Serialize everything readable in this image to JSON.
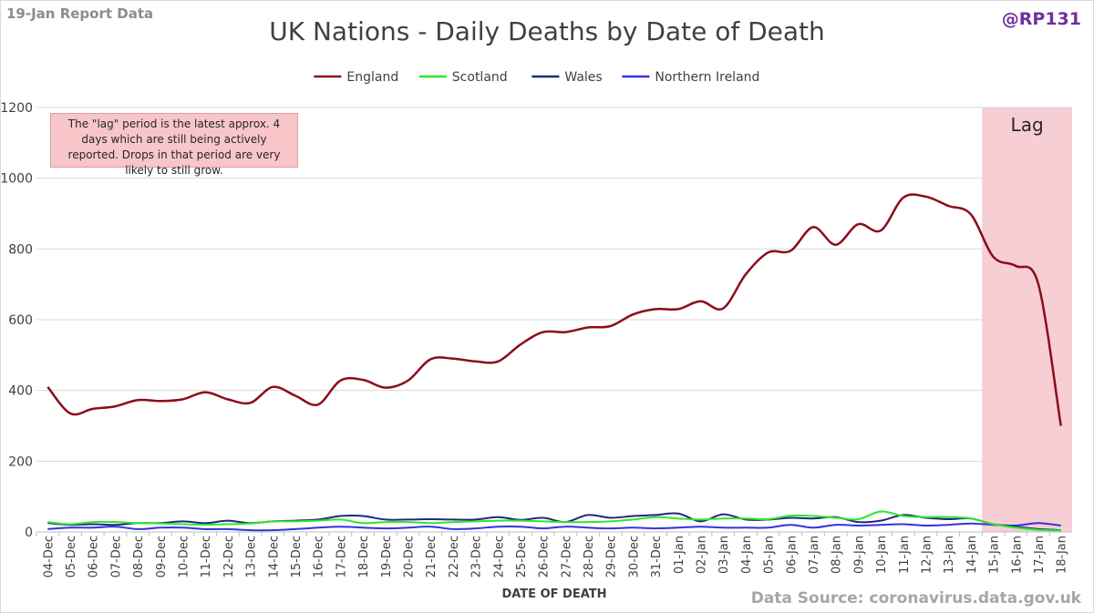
{
  "header": {
    "report_label": "19-Jan Report Data",
    "handle": "@RP131",
    "source": "Data Source: coronavirus.data.gov.uk"
  },
  "annotation": {
    "note": "The \"lag\" period is the latest approx. 4 days which are still being actively reported. Drops in that period are very likely to still grow.",
    "lag_label": "Lag"
  },
  "colors": {
    "england": "#8b0c1c",
    "scotland": "#2ee62e",
    "wales": "#1f2a7a",
    "northern_ireland": "#3333dd",
    "lag_fill": "#f4c6cc",
    "grid": "#d9d9d9"
  },
  "chart_data": {
    "type": "line",
    "title": "UK Nations - Daily Deaths by Date of Death",
    "xlabel": "DATE OF DEATH",
    "ylabel": "",
    "ylim": [
      0,
      1200
    ],
    "yticks": [
      0,
      200,
      400,
      600,
      800,
      1000,
      1200
    ],
    "legend_position": "top-center",
    "lag_range": [
      "15-Jan",
      "18-Jan"
    ],
    "categories": [
      "04-Dec",
      "05-Dec",
      "06-Dec",
      "07-Dec",
      "08-Dec",
      "09-Dec",
      "10-Dec",
      "11-Dec",
      "12-Dec",
      "13-Dec",
      "14-Dec",
      "15-Dec",
      "16-Dec",
      "17-Dec",
      "18-Dec",
      "19-Dec",
      "20-Dec",
      "21-Dec",
      "22-Dec",
      "23-Dec",
      "24-Dec",
      "25-Dec",
      "26-Dec",
      "27-Dec",
      "28-Dec",
      "29-Dec",
      "30-Dec",
      "31-Dec",
      "01-Jan",
      "02-Jan",
      "03-Jan",
      "04-Jan",
      "05-Jan",
      "06-Jan",
      "07-Jan",
      "08-Jan",
      "09-Jan",
      "10-Jan",
      "11-Jan",
      "12-Jan",
      "13-Jan",
      "14-Jan",
      "15-Jan",
      "16-Jan",
      "17-Jan",
      "18-Jan"
    ],
    "series": [
      {
        "name": "England",
        "color_key": "england",
        "values": [
          410,
          335,
          348,
          355,
          373,
          370,
          375,
          395,
          375,
          365,
          410,
          385,
          360,
          428,
          430,
          408,
          428,
          488,
          490,
          482,
          482,
          530,
          565,
          565,
          578,
          582,
          615,
          630,
          630,
          652,
          632,
          728,
          790,
          795,
          862,
          812,
          870,
          852,
          945,
          948,
          922,
          898,
          778,
          752,
          700,
          300
        ]
      },
      {
        "name": "Scotland",
        "color_key": "scotland",
        "values": [
          28,
          22,
          28,
          28,
          25,
          24,
          22,
          20,
          22,
          24,
          30,
          30,
          32,
          35,
          25,
          28,
          28,
          25,
          28,
          30,
          32,
          32,
          30,
          28,
          28,
          30,
          35,
          42,
          38,
          35,
          38,
          38,
          36,
          46,
          45,
          40,
          36,
          58,
          45,
          42,
          42,
          38,
          22,
          12,
          6,
          4
        ]
      },
      {
        "name": "Wales",
        "color_key": "wales",
        "values": [
          25,
          20,
          22,
          20,
          25,
          25,
          30,
          25,
          32,
          25,
          30,
          32,
          35,
          45,
          45,
          35,
          35,
          36,
          35,
          35,
          42,
          34,
          40,
          28,
          48,
          40,
          45,
          48,
          52,
          30,
          50,
          35,
          35,
          40,
          38,
          42,
          28,
          32,
          48,
          40,
          36,
          38,
          22,
          15,
          8,
          5
        ]
      },
      {
        "name": "Northern Ireland",
        "color_key": "northern_ireland",
        "values": [
          8,
          12,
          12,
          15,
          8,
          12,
          12,
          8,
          8,
          5,
          5,
          8,
          12,
          15,
          12,
          10,
          12,
          15,
          8,
          10,
          15,
          15,
          10,
          15,
          12,
          10,
          12,
          10,
          12,
          15,
          12,
          12,
          12,
          20,
          12,
          20,
          18,
          20,
          22,
          18,
          20,
          24,
          20,
          18,
          25,
          18
        ]
      }
    ]
  }
}
